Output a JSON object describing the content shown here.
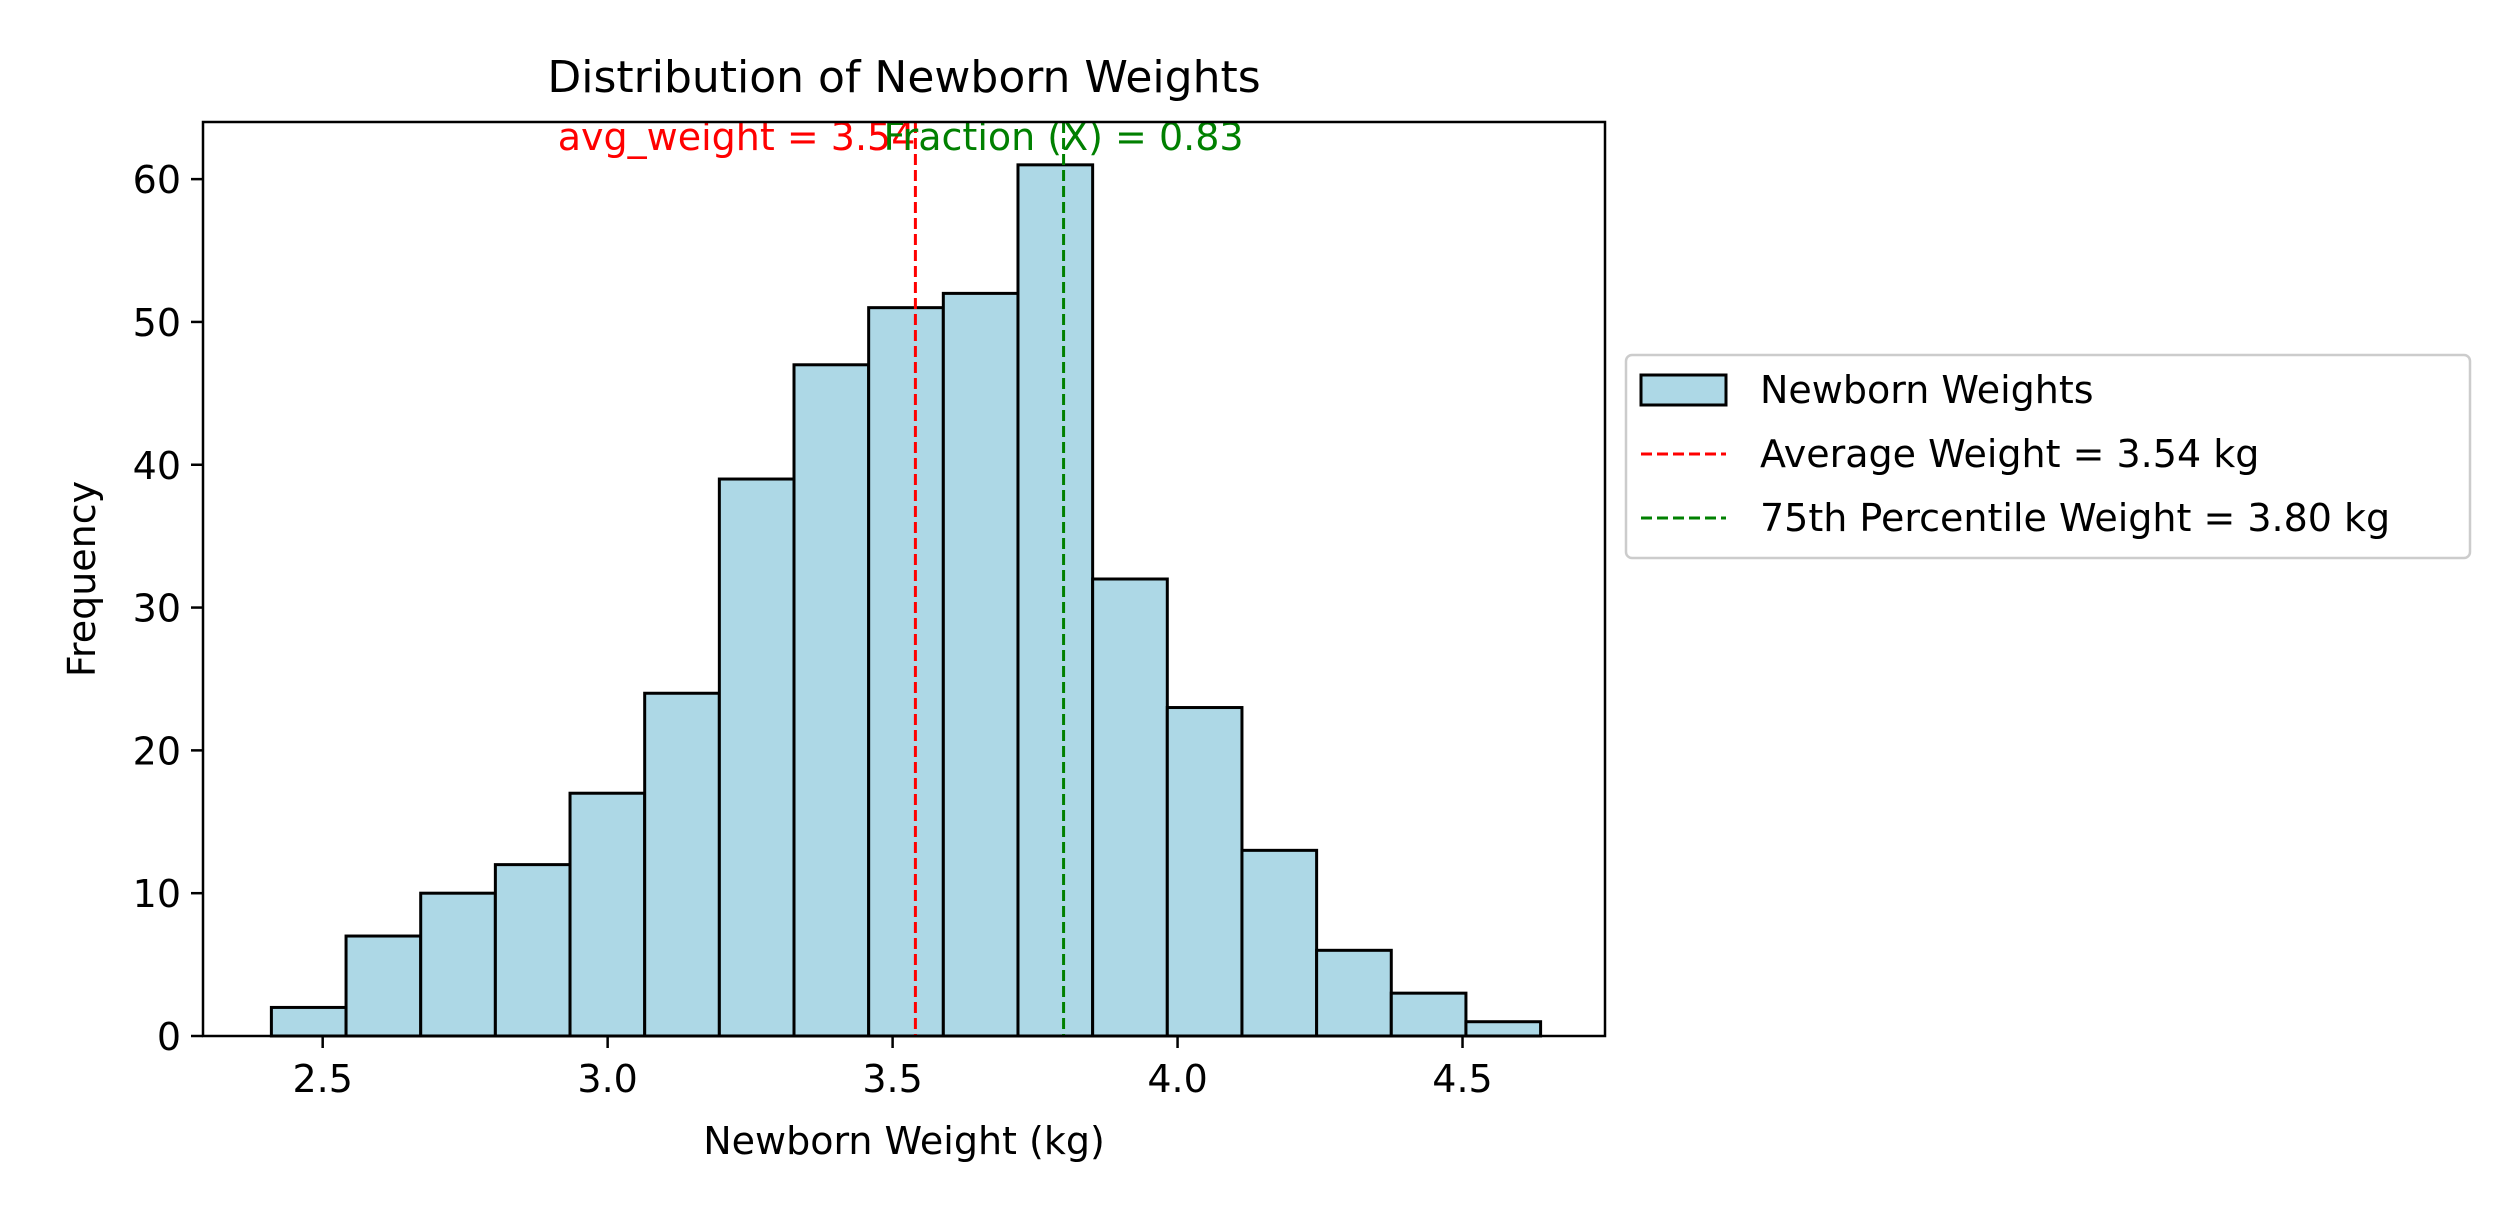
{
  "chart_data": {
    "type": "bar",
    "title": "Distribution of Newborn Weights",
    "xlabel": "Newborn Weight (kg)",
    "ylabel": "Frequency",
    "xlim": [
      2.29,
      4.75
    ],
    "ylim": [
      0,
      64
    ],
    "x_ticks": [
      2.5,
      3.0,
      3.5,
      4.0,
      4.5
    ],
    "x_tick_labels": [
      "2.5",
      "3.0",
      "3.5",
      "4.0",
      "4.5"
    ],
    "y_ticks": [
      0,
      10,
      20,
      30,
      40,
      50,
      60
    ],
    "y_tick_labels": [
      "0",
      "10",
      "20",
      "30",
      "40",
      "50",
      "60"
    ],
    "bin_edges": [
      2.41,
      2.541,
      2.672,
      2.803,
      2.934,
      3.065,
      3.196,
      3.327,
      3.458,
      3.589,
      3.72,
      3.851,
      3.982,
      4.113,
      4.244,
      4.375,
      4.506,
      4.637
    ],
    "series": [
      {
        "name": "Newborn Weights",
        "values": [
          2,
          7,
          10,
          12,
          17,
          24,
          39,
          47,
          51,
          52,
          61,
          32,
          23,
          13,
          6,
          3,
          1
        ],
        "color": "#add8e6",
        "edge_color": "#000000"
      }
    ],
    "reference_lines": [
      {
        "name": "Average Weight = 3.54 kg",
        "x": 3.54,
        "color": "#ff0000",
        "style": "dashed",
        "annotation": "avg_weight = 3.54"
      },
      {
        "name": "75th Percentile Weight = 3.80 kg",
        "x": 3.8,
        "color": "#008000",
        "style": "dashed",
        "annotation": "Fraction (X) = 0.83"
      }
    ],
    "legend": {
      "placement": "right-outside",
      "entries": [
        {
          "label": "Newborn Weights",
          "kind": "patch",
          "color": "#add8e6"
        },
        {
          "label": "Average Weight = 3.54 kg",
          "kind": "dashed-line",
          "color": "#ff0000"
        },
        {
          "label": "75th Percentile Weight = 3.80 kg",
          "kind": "dashed-line",
          "color": "#008000"
        }
      ]
    },
    "grid": false
  }
}
